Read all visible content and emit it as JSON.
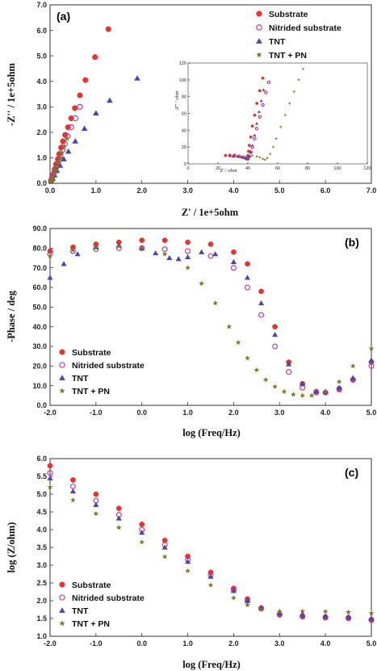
{
  "chart_data": [
    {
      "id": "a",
      "type": "scatter",
      "panel_label": "(a)",
      "xlabel": "Z' / 1e+5ohm",
      "ylabel": "-Z'' / 1e+5ohm",
      "xlim": [
        0,
        7
      ],
      "ylim": [
        0,
        7
      ],
      "x_ticks": [
        "0.0",
        "1.0",
        "2.0",
        "3.0",
        "4.0",
        "5.0",
        "6.0",
        "7.0"
      ],
      "y_ticks": [
        "0.0",
        "1.0",
        "2.0",
        "3.0",
        "4.0",
        "5.0",
        "6.0",
        "7.0"
      ],
      "legend_position": "top-right",
      "series": [
        {
          "name": "Substrate",
          "color": "#e8322b",
          "marker": "filled-circle",
          "x": [
            0.02,
            0.04,
            0.07,
            0.1,
            0.13,
            0.17,
            0.2,
            0.24,
            0.28,
            0.33,
            0.39,
            0.46,
            0.54,
            0.65,
            0.77,
            0.98,
            1.27
          ],
          "y": [
            0.1,
            0.2,
            0.35,
            0.55,
            0.75,
            0.95,
            1.15,
            1.4,
            1.65,
            1.9,
            2.2,
            2.55,
            2.95,
            3.45,
            4.05,
            4.95,
            6.05
          ]
        },
        {
          "name": "Nitrided substrate",
          "color": "#cc2c8a",
          "marker": "open-circle",
          "x": [
            0.02,
            0.04,
            0.07,
            0.1,
            0.14,
            0.18,
            0.22,
            0.27,
            0.32,
            0.38,
            0.46,
            0.55,
            0.65
          ],
          "y": [
            0.08,
            0.18,
            0.3,
            0.45,
            0.65,
            0.85,
            1.05,
            1.3,
            1.55,
            1.85,
            2.2,
            2.55,
            3.0
          ]
        },
        {
          "name": "TNT",
          "color": "#4a46b0",
          "marker": "triangle",
          "x": [
            0.03,
            0.06,
            0.1,
            0.15,
            0.22,
            0.3,
            0.4,
            0.55,
            0.75,
            1.0,
            1.3,
            1.9
          ],
          "y": [
            0.08,
            0.18,
            0.32,
            0.5,
            0.7,
            0.95,
            1.25,
            1.65,
            2.15,
            2.75,
            3.25,
            4.12
          ]
        },
        {
          "name": "TNT + PN",
          "color": "#7a7a22",
          "marker": "star",
          "x": [
            0.02,
            0.04,
            0.06,
            0.09,
            0.12,
            0.15,
            0.18,
            0.22,
            0.26,
            0.31,
            0.37
          ],
          "y": [
            0.05,
            0.12,
            0.22,
            0.35,
            0.5,
            0.65,
            0.82,
            1.0,
            1.2,
            1.45,
            1.75
          ]
        }
      ],
      "inset": {
        "xlabel": "Z' / ohm",
        "ylabel": "-Z'' / ohm",
        "xlim": [
          0,
          120
        ],
        "ylim": [
          0,
          120
        ],
        "x_ticks": [
          "0",
          "20",
          "40",
          "60",
          "80",
          "100",
          "120"
        ],
        "y_ticks": [
          "0",
          "20",
          "40",
          "60",
          "80",
          "100",
          "120"
        ],
        "series": [
          {
            "name": "Substrate",
            "x": [
              25,
              28,
              31,
              34,
              36,
              38,
              39,
              40,
              40.5,
              41,
              42,
              43,
              44.5,
              46,
              48,
              50
            ],
            "y": [
              10,
              10,
              9.5,
              9,
              8,
              7,
              6,
              10,
              15,
              22,
              32,
              45,
              58,
              72,
              87,
              102
            ]
          },
          {
            "name": "Nitrided substrate",
            "x": [
              28,
              31,
              34,
              37,
              39,
              40,
              41,
              42,
              43,
              44.5,
              46,
              48,
              50,
              52,
              54
            ],
            "y": [
              10,
              10,
              9,
              8,
              7,
              6,
              9,
              14,
              20,
              30,
              42,
              56,
              70,
              85,
              97
            ]
          },
          {
            "name": "TNT",
            "x": [
              30,
              33,
              36,
              38,
              40,
              41,
              42,
              43,
              44.5,
              46,
              47.5,
              49,
              50.5
            ],
            "y": [
              9,
              9,
              8,
              7,
              6,
              9,
              14,
              22,
              34,
              48,
              62,
              75,
              88
            ]
          },
          {
            "name": "TNT + PN",
            "x": [
              40,
              43,
              46,
              48,
              50,
              51.5,
              53,
              55,
              57,
              59,
              62,
              65,
              68,
              71,
              74,
              77
            ],
            "y": [
              10,
              10,
              9,
              8,
              6,
              5,
              7,
              12,
              20,
              30,
              44,
              58,
              72,
              86,
              100,
              113
            ]
          }
        ]
      }
    },
    {
      "id": "b",
      "type": "scatter",
      "panel_label": "(b)",
      "xlabel": "log (Freq/Hz)",
      "ylabel": "-Phase / deg",
      "xlim": [
        -2,
        5
      ],
      "ylim": [
        0,
        90
      ],
      "x_ticks": [
        "-2.0",
        "-1.0",
        "0.0",
        "1.0",
        "2.0",
        "3.0",
        "4.0",
        "5.0"
      ],
      "y_ticks": [
        "0.0",
        "10.0",
        "20.0",
        "30.0",
        "40.0",
        "50.0",
        "60.0",
        "70.0",
        "80.0",
        "90.0"
      ],
      "legend_position": "bottom-left",
      "series": [
        {
          "name": "Substrate",
          "color": "#e8322b",
          "marker": "filled-circle",
          "x": [
            -2.0,
            -1.5,
            -1.0,
            -0.5,
            0.0,
            0.5,
            1.0,
            1.5,
            2.0,
            2.3,
            2.6,
            2.9,
            3.2,
            3.5,
            3.8,
            4.0,
            4.3,
            4.6,
            5.0
          ],
          "y": [
            78.5,
            80.5,
            82.0,
            83.0,
            84.0,
            84.0,
            83.0,
            82.0,
            78.0,
            72.0,
            58.0,
            40.0,
            22.0,
            11.0,
            7.0,
            6.5,
            8.0,
            13.0,
            22.0
          ]
        },
        {
          "name": "Nitrided substrate",
          "color": "#cc2c8a",
          "marker": "open-circle",
          "x": [
            -2.0,
            -1.5,
            -1.0,
            -0.5,
            0.0,
            0.5,
            1.0,
            1.5,
            2.0,
            2.3,
            2.6,
            2.9,
            3.2,
            3.5,
            3.8,
            4.0,
            4.3,
            4.6,
            5.0
          ],
          "y": [
            77.0,
            78.5,
            79.5,
            80.0,
            80.0,
            79.5,
            78.5,
            76.0,
            70.0,
            60.0,
            46.0,
            30.0,
            17.0,
            9.0,
            6.5,
            6.5,
            8.5,
            13.0,
            20.0
          ]
        },
        {
          "name": "TNT",
          "color": "#4a46b0",
          "marker": "triangle",
          "x": [
            -2.0,
            -1.7,
            -1.4,
            -1.0,
            -0.5,
            0.0,
            0.3,
            0.6,
            0.8,
            1.0,
            1.3,
            1.6,
            2.0,
            2.3,
            2.6,
            2.9,
            3.2,
            3.5,
            3.8,
            4.0,
            4.3,
            4.6,
            5.0
          ],
          "y": [
            65.0,
            72.0,
            77.0,
            80.5,
            81.5,
            80.0,
            77.5,
            75.0,
            74.5,
            75.5,
            78.0,
            77.0,
            73.0,
            65.0,
            52.0,
            36.0,
            21.0,
            11.0,
            7.0,
            7.0,
            9.0,
            14.0,
            23.0
          ]
        },
        {
          "name": "TNT + PN",
          "color": "#7a7a22",
          "marker": "star",
          "x": [
            -2.0,
            -1.5,
            -1.0,
            -0.5,
            0.0,
            0.5,
            1.0,
            1.3,
            1.6,
            1.9,
            2.1,
            2.3,
            2.5,
            2.7,
            2.9,
            3.1,
            3.3,
            3.5,
            3.7,
            4.0,
            4.3,
            4.6,
            5.0
          ],
          "y": [
            76.0,
            79.0,
            80.5,
            81.0,
            80.5,
            77.0,
            70.0,
            62.0,
            52.0,
            40.0,
            32.0,
            24.0,
            18.0,
            13.0,
            9.5,
            7.0,
            5.5,
            5.0,
            5.0,
            7.0,
            12.0,
            20.0,
            29.0
          ]
        }
      ]
    },
    {
      "id": "c",
      "type": "scatter",
      "panel_label": "(c)",
      "xlabel": "log (Freq/Hz)",
      "ylabel": "log (Z/ohm)",
      "xlim": [
        -2,
        5
      ],
      "ylim": [
        1.0,
        6.0
      ],
      "x_ticks": [
        "-2.0",
        "-1.0",
        "0.0",
        "1.0",
        "2.0",
        "3.0",
        "4.0",
        "5.0"
      ],
      "y_ticks": [
        "1.0",
        "1.5",
        "2.0",
        "2.5",
        "3.0",
        "3.5",
        "4.0",
        "4.5",
        "5.0",
        "5.5",
        "6.0"
      ],
      "legend_position": "bottom-left",
      "series": [
        {
          "name": "Substrate",
          "color": "#e8322b",
          "marker": "filled-circle",
          "x": [
            -2.0,
            -1.5,
            -1.0,
            -0.5,
            0.0,
            0.5,
            1.0,
            1.5,
            2.0,
            2.3,
            2.6,
            3.0,
            3.5,
            4.0,
            4.5,
            5.0
          ],
          "y": [
            5.8,
            5.4,
            5.0,
            4.6,
            4.15,
            3.7,
            3.25,
            2.8,
            2.35,
            2.05,
            1.8,
            1.6,
            1.55,
            1.52,
            1.5,
            1.45
          ]
        },
        {
          "name": "Nitrided substrate",
          "color": "#cc2c8a",
          "marker": "open-circle",
          "x": [
            -2.0,
            -1.5,
            -1.0,
            -0.5,
            0.0,
            0.5,
            1.0,
            1.5,
            2.0,
            2.3,
            2.6,
            3.0,
            3.5,
            4.0,
            4.5,
            5.0
          ],
          "y": [
            5.6,
            5.22,
            4.82,
            4.42,
            4.0,
            3.57,
            3.15,
            2.72,
            2.3,
            2.0,
            1.78,
            1.62,
            1.57,
            1.54,
            1.52,
            1.47
          ]
        },
        {
          "name": "TNT",
          "color": "#4a46b0",
          "marker": "triangle",
          "x": [
            -2.0,
            -1.5,
            -1.0,
            -0.5,
            0.0,
            0.5,
            1.0,
            1.5,
            2.0,
            2.3,
            2.6,
            3.0,
            3.5,
            4.0,
            4.5,
            5.0
          ],
          "y": [
            5.45,
            5.08,
            4.7,
            4.32,
            3.92,
            3.5,
            3.1,
            2.68,
            2.28,
            2.0,
            1.8,
            1.65,
            1.6,
            1.57,
            1.55,
            1.5
          ]
        },
        {
          "name": "TNT + PN",
          "color": "#7a7a22",
          "marker": "star",
          "x": [
            -2.0,
            -1.5,
            -1.0,
            -0.5,
            0.0,
            0.5,
            1.0,
            1.5,
            2.0,
            2.3,
            2.6,
            3.0,
            3.5,
            4.0,
            4.5,
            5.0
          ],
          "y": [
            5.2,
            4.83,
            4.45,
            4.06,
            3.65,
            3.24,
            2.84,
            2.44,
            2.08,
            1.88,
            1.75,
            1.7,
            1.7,
            1.7,
            1.68,
            1.65
          ]
        }
      ]
    }
  ]
}
